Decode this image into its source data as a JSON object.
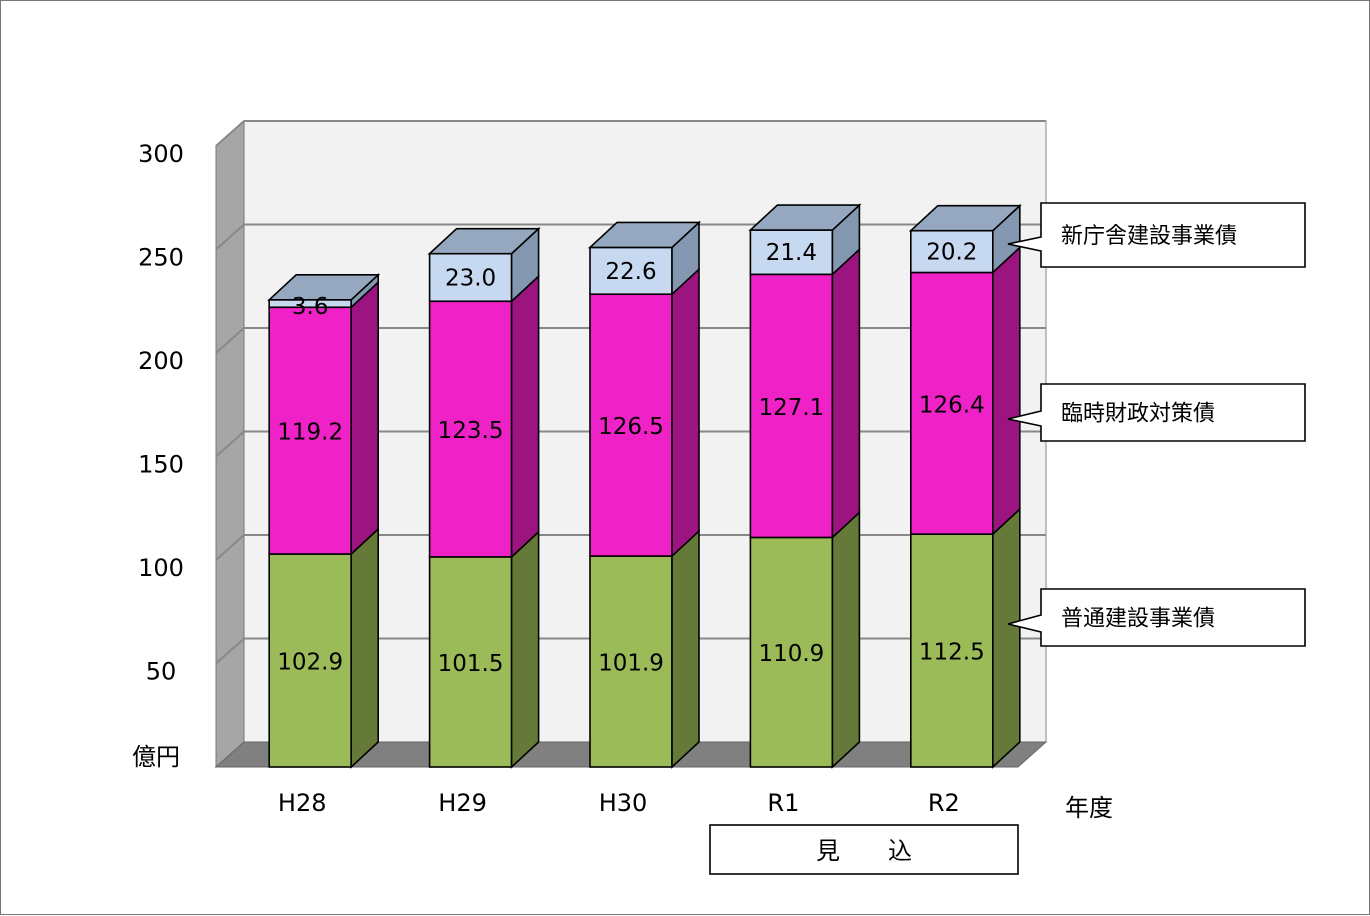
{
  "chart_data": {
    "type": "bar",
    "stacked": true,
    "style": "3d",
    "categories": [
      "H28",
      "H29",
      "H30",
      "R1",
      "R2"
    ],
    "series": [
      {
        "name": "普通建設事業債",
        "values": [
          102.9,
          101.5,
          101.9,
          110.9,
          112.5
        ],
        "color": "#9BBB59",
        "side_color": "#657A38",
        "top_color": "#B3CC7E"
      },
      {
        "name": "臨時財政対策債",
        "values": [
          119.2,
          123.5,
          126.5,
          127.1,
          126.4
        ],
        "color": "#EE22C6",
        "side_color": "#9C1480",
        "top_color": "#F46DDB"
      },
      {
        "name": "新庁舎建設事業債",
        "values": [
          3.6,
          23.0,
          22.6,
          21.4,
          20.2
        ],
        "color": "#C6D9F1",
        "side_color": "#8497B0",
        "top_color": "#95A8C0"
      }
    ],
    "data_labels": [
      [
        "102.9",
        "101.5",
        "101.9",
        "110.9",
        "112.5"
      ],
      [
        "119.2",
        "123.5",
        "126.5",
        "127.1",
        "126.4"
      ],
      [
        "3.6",
        "23.0",
        "22.6",
        "21.4",
        "20.2"
      ]
    ],
    "y_ticks": [
      "50",
      "100",
      "150",
      "200",
      "250",
      "300"
    ],
    "y_tick_values": [
      50,
      100,
      150,
      200,
      250,
      300
    ],
    "ylim": [
      0,
      300
    ],
    "y_unit": "億円",
    "x_unit": "年度",
    "projection_note": "見　　込",
    "grid": true,
    "legend": "callouts-right"
  }
}
